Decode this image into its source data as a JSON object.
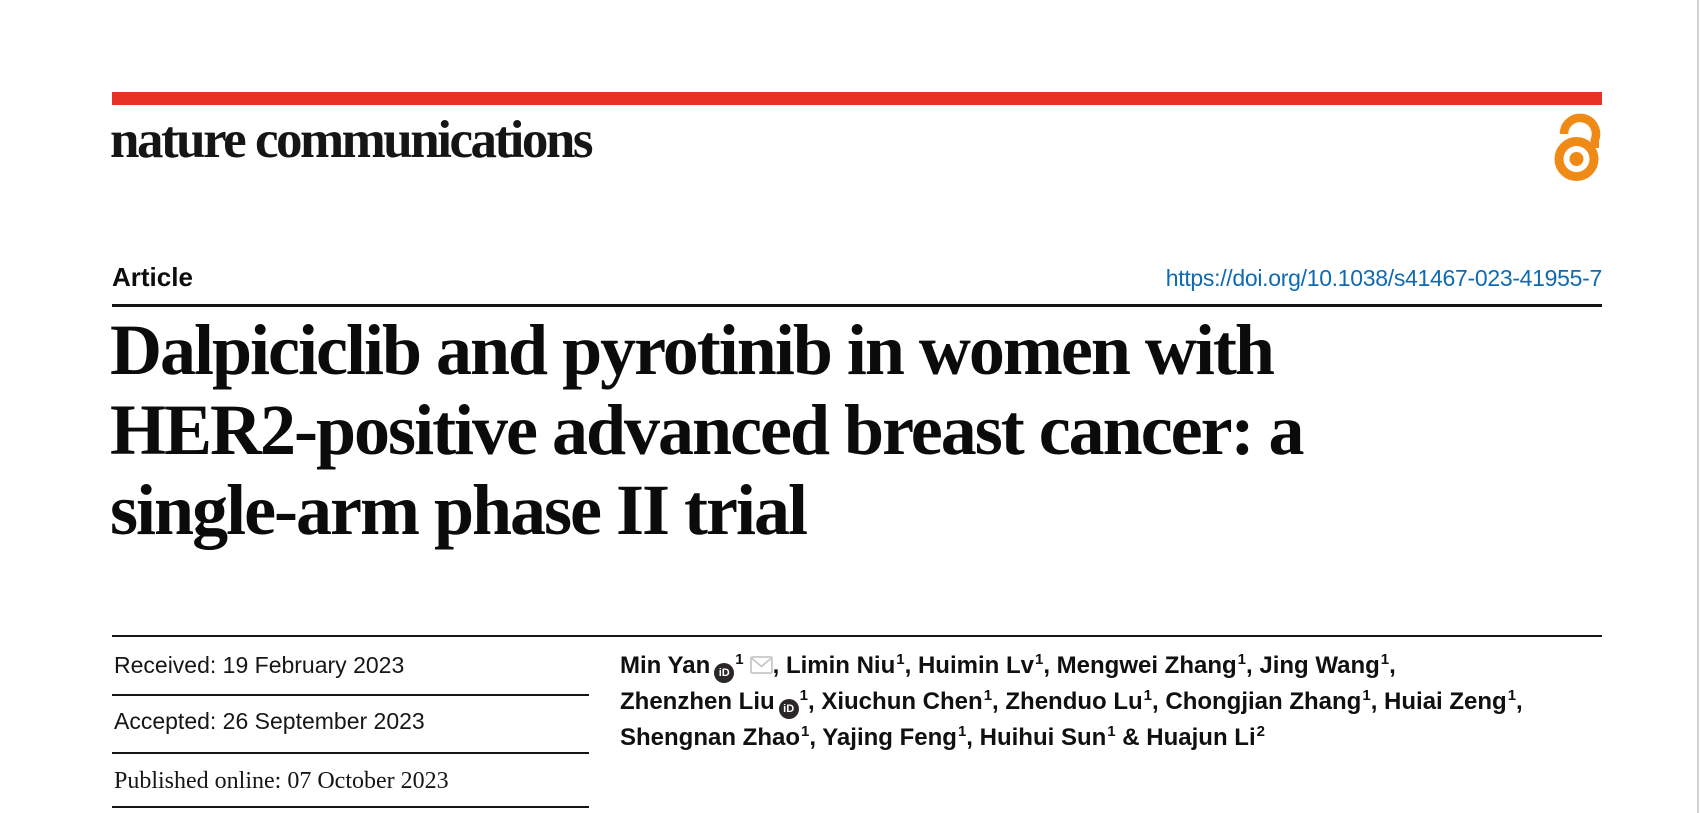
{
  "colors": {
    "brand_red": "#e63323",
    "open_access_orange": "#ee8a15",
    "link_blue": "#0e6ab2",
    "orcid_badge_dark": "#2b2627",
    "envelope_gray": "#c8c8c8",
    "page_edge_gray": "#d4d4d4"
  },
  "masthead": {
    "logo_text": "nature communications",
    "open_access_icon": "open-access-padlock"
  },
  "article_header": {
    "kicker": "Article",
    "doi": "https://doi.org/10.1038/s41467-023-41955-7"
  },
  "title": {
    "lines": [
      "Dalpiciclib and pyrotinib in women with",
      "HER2-positive advanced breast cancer: a",
      "single-arm phase II trial"
    ]
  },
  "history": {
    "received": "Received: 19 February 2023",
    "accepted": "Accepted: 26 September 2023",
    "published": "Published online: 07 October 2023"
  },
  "authors": {
    "orcid_icon_label": "iD",
    "list": [
      {
        "name": "Min Yan",
        "affiliation": "1",
        "orcid": true,
        "email": true,
        "sep": ", "
      },
      {
        "name": "Limin Niu",
        "affiliation": "1",
        "sep": ", "
      },
      {
        "name": "Huimin Lv",
        "affiliation": "1",
        "sep": ", "
      },
      {
        "name": "Mengwei Zhang",
        "affiliation": "1",
        "sep": ", "
      },
      {
        "name": "Jing Wang",
        "affiliation": "1",
        "sep": ",",
        "break_after": true
      },
      {
        "name": "Zhenzhen Liu",
        "affiliation": "1",
        "orcid": true,
        "sep": ", "
      },
      {
        "name": "Xiuchun Chen",
        "affiliation": "1",
        "sep": ", "
      },
      {
        "name": "Zhenduo Lu",
        "affiliation": "1",
        "sep": ", "
      },
      {
        "name": "Chongjian Zhang",
        "affiliation": "1",
        "sep": ", "
      },
      {
        "name": "Huiai Zeng",
        "affiliation": "1",
        "sep": ",",
        "break_after": true
      },
      {
        "name": "Shengnan Zhao",
        "affiliation": "1",
        "sep": ", "
      },
      {
        "name": "Yajing Feng",
        "affiliation": "1",
        "sep": ", "
      },
      {
        "name": "Huihui Sun",
        "affiliation": "1",
        "sep": " & "
      },
      {
        "name": "Huajun Li",
        "affiliation": "2",
        "sep": ""
      }
    ]
  }
}
